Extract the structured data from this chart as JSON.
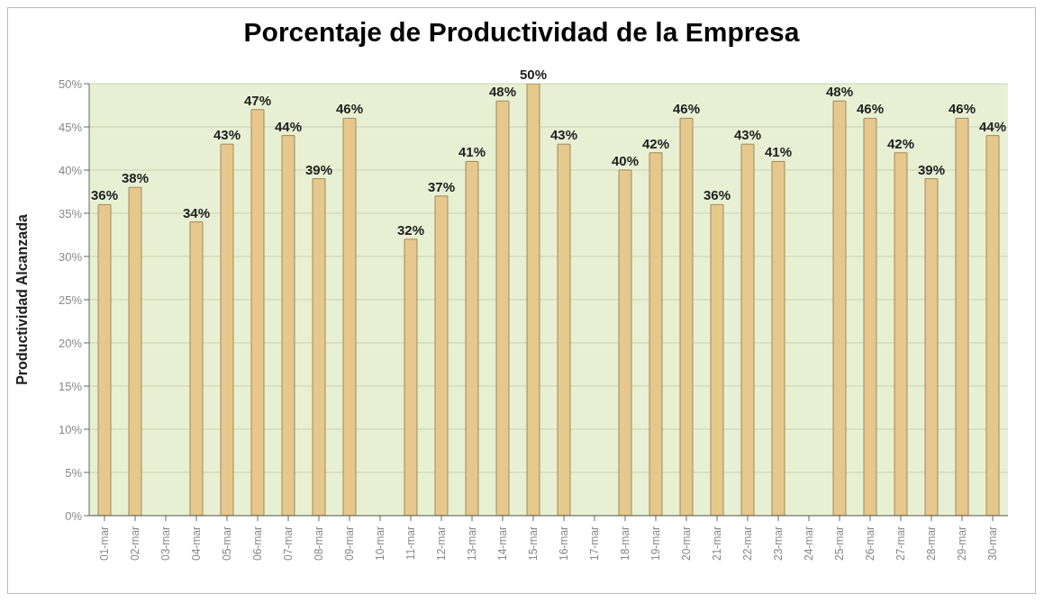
{
  "chart_data": {
    "type": "bar",
    "title": "Porcentaje de Productividad de la Empresa",
    "ylabel": "Productividad Alcanzada",
    "categories": [
      "01-mar",
      "02-mar",
      "03-mar",
      "04-mar",
      "05-mar",
      "06-mar",
      "07-mar",
      "08-mar",
      "09-mar",
      "10-mar",
      "11-mar",
      "12-mar",
      "13-mar",
      "14-mar",
      "15-mar",
      "16-mar",
      "17-mar",
      "18-mar",
      "19-mar",
      "20-mar",
      "21-mar",
      "22-mar",
      "23-mar",
      "24-mar",
      "25-mar",
      "26-mar",
      "27-mar",
      "28-mar",
      "29-mar",
      "30-mar"
    ],
    "values": [
      36,
      38,
      null,
      34,
      43,
      47,
      44,
      39,
      46,
      null,
      32,
      37,
      41,
      48,
      50,
      43,
      null,
      40,
      42,
      46,
      36,
      43,
      41,
      null,
      48,
      46,
      42,
      39,
      46,
      44
    ],
    "value_labels": [
      "36%",
      "38%",
      null,
      "34%",
      "43%",
      "47%",
      "44%",
      "39%",
      "46%",
      null,
      "32%",
      "37%",
      "41%",
      "48%",
      "50%",
      "43%",
      null,
      "40%",
      "42%",
      "46%",
      "36%",
      "43%",
      "41%",
      null,
      "48%",
      "46%",
      "42%",
      "39%",
      "46%",
      "44%"
    ],
    "color": "#e6c88c",
    "ylim": [
      0,
      50
    ],
    "yticks": [
      {
        "value": 0,
        "label": "0%"
      },
      {
        "value": 5,
        "label": "5%"
      },
      {
        "value": 10,
        "label": "10%"
      },
      {
        "value": 15,
        "label": "15%"
      },
      {
        "value": 20,
        "label": "20%"
      },
      {
        "value": 25,
        "label": "25%"
      },
      {
        "value": 30,
        "label": "30%"
      },
      {
        "value": 35,
        "label": "35%"
      },
      {
        "value": 40,
        "label": "40%"
      },
      {
        "value": 45,
        "label": "45%"
      },
      {
        "value": 50,
        "label": "50%"
      }
    ],
    "grid": "y"
  }
}
